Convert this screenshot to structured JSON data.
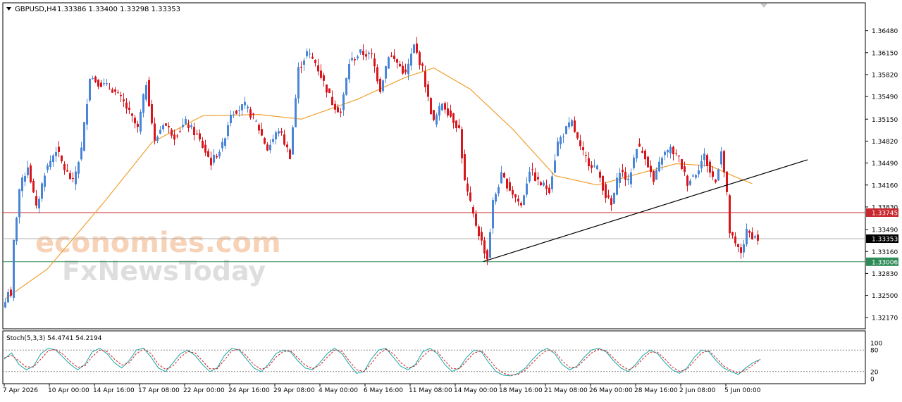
{
  "header": {
    "symbol": "GBPUSD,H4",
    "ohlc": "1.33386 1.33400 1.33298 1.33353"
  },
  "watermark": {
    "line1": "economies.com",
    "line2": "FxNewsToday"
  },
  "colors": {
    "bull": "#4a86d8",
    "bear": "#d8161d",
    "ma": "#f0a030",
    "trendline": "#000000",
    "resistance_line": "#c8282f",
    "support_line": "#2e8b57",
    "current_line": "#b0b0b0",
    "stoch_main": "#1aa6a6",
    "stoch_signal": "#d22222",
    "grid_level": "#888888"
  },
  "chart_data": [
    {
      "type": "line",
      "title": "GBPUSD,H4",
      "price_axis": {
        "ticks": [
          1.3648,
          1.3615,
          1.3582,
          1.3549,
          1.3515,
          1.3482,
          1.3449,
          1.3416,
          1.3383,
          1.3349,
          1.3316,
          1.3283,
          1.325,
          1.3217
        ],
        "tick_labels": [
          "1.36480",
          "1.36150",
          "1.35820",
          "1.35490",
          "1.35150",
          "1.34820",
          "1.34490",
          "1.34160",
          "1.33830",
          "1.33490",
          "1.33160",
          "1.32830",
          "1.32500",
          "1.32170"
        ],
        "ylim": [
          1.3203,
          1.3673
        ]
      },
      "time_axis": {
        "labels": [
          "7 Apr 2026",
          "10 Apr 00:00",
          "14 Apr 16:00",
          "17 Apr 08:00",
          "22 Apr 00:00",
          "24 Apr 16:00",
          "29 Apr 08:00",
          "4 May 00:00",
          "6 May 16:00",
          "11 May 08:00",
          "14 May 00:00",
          "18 May 16:00",
          "21 May 08:00",
          "26 May 00:00",
          "28 May 16:00",
          "2 Jun 08:00",
          "5 Jun 00:00"
        ],
        "label_bar_index": [
          0,
          16,
          32,
          48,
          64,
          80,
          96,
          112,
          128,
          144,
          160,
          176,
          192,
          208,
          224,
          240,
          256
        ]
      },
      "price_levels": [
        {
          "label": "1.33745",
          "value": 1.33745,
          "kind": "resistance"
        },
        {
          "label": "1.33353",
          "value": 1.33353,
          "kind": "current"
        },
        {
          "label": "1.33006",
          "value": 1.33006,
          "kind": "support"
        }
      ],
      "trendline": {
        "from": {
          "bar": 170,
          "price": 1.3301
        },
        "to": {
          "bar": 285,
          "price": 1.3454
        }
      },
      "ma_anchors": [
        [
          0,
          1.3245
        ],
        [
          15,
          1.329
        ],
        [
          35,
          1.339
        ],
        [
          52,
          1.348
        ],
        [
          70,
          1.352
        ],
        [
          90,
          1.3522
        ],
        [
          105,
          1.3515
        ],
        [
          125,
          1.3545
        ],
        [
          142,
          1.3578
        ],
        [
          152,
          1.3592
        ],
        [
          165,
          1.356
        ],
        [
          180,
          1.35
        ],
        [
          195,
          1.343
        ],
        [
          210,
          1.3416
        ],
        [
          222,
          1.343
        ],
        [
          238,
          1.3448
        ],
        [
          250,
          1.3445
        ],
        [
          258,
          1.343
        ],
        [
          265,
          1.3418
        ]
      ],
      "price_anchors": [
        [
          0,
          1.324
        ],
        [
          1,
          1.3258
        ],
        [
          2,
          1.3245
        ],
        [
          3,
          1.333
        ],
        [
          5,
          1.341
        ],
        [
          8,
          1.3445
        ],
        [
          11,
          1.338
        ],
        [
          14,
          1.3435
        ],
        [
          18,
          1.347
        ],
        [
          21,
          1.344
        ],
        [
          24,
          1.342
        ],
        [
          27,
          1.347
        ],
        [
          30,
          1.358
        ],
        [
          33,
          1.357
        ],
        [
          38,
          1.356
        ],
        [
          42,
          1.354
        ],
        [
          47,
          1.35
        ],
        [
          50,
          1.357
        ],
        [
          53,
          1.348
        ],
        [
          56,
          1.351
        ],
        [
          60,
          1.349
        ],
        [
          64,
          1.351
        ],
        [
          68,
          1.349
        ],
        [
          73,
          1.345
        ],
        [
          77,
          1.3475
        ],
        [
          80,
          1.3525
        ],
        [
          85,
          1.3535
        ],
        [
          89,
          1.351
        ],
        [
          93,
          1.347
        ],
        [
          97,
          1.35
        ],
        [
          101,
          1.346
        ],
        [
          104,
          1.359
        ],
        [
          107,
          1.3615
        ],
        [
          110,
          1.36
        ],
        [
          113,
          1.357
        ],
        [
          116,
          1.354
        ],
        [
          119,
          1.3525
        ],
        [
          122,
          1.36
        ],
        [
          126,
          1.3615
        ],
        [
          130,
          1.361
        ],
        [
          133,
          1.356
        ],
        [
          136,
          1.3612
        ],
        [
          139,
          1.36
        ],
        [
          142,
          1.3582
        ],
        [
          145,
          1.3625
        ],
        [
          148,
          1.359
        ],
        [
          150,
          1.3545
        ],
        [
          152,
          1.351
        ],
        [
          155,
          1.354
        ],
        [
          158,
          1.352
        ],
        [
          161,
          1.35
        ],
        [
          163,
          1.342
        ],
        [
          166,
          1.337
        ],
        [
          169,
          1.333
        ],
        [
          171,
          1.3305
        ],
        [
          173,
          1.339
        ],
        [
          176,
          1.343
        ],
        [
          179,
          1.341
        ],
        [
          183,
          1.3385
        ],
        [
          186,
          1.344
        ],
        [
          189,
          1.342
        ],
        [
          193,
          1.341
        ],
        [
          196,
          1.348
        ],
        [
          199,
          1.35
        ],
        [
          201,
          1.351
        ],
        [
          204,
          1.347
        ],
        [
          207,
          1.345
        ],
        [
          210,
          1.344
        ],
        [
          213,
          1.34
        ],
        [
          215,
          1.3385
        ],
        [
          218,
          1.344
        ],
        [
          221,
          1.342
        ],
        [
          224,
          1.3475
        ],
        [
          227,
          1.346
        ],
        [
          230,
          1.342
        ],
        [
          233,
          1.346
        ],
        [
          236,
          1.347
        ],
        [
          239,
          1.3455
        ],
        [
          242,
          1.342
        ],
        [
          245,
          1.3435
        ],
        [
          248,
          1.346
        ],
        [
          250,
          1.3435
        ],
        [
          252,
          1.342
        ],
        [
          254,
          1.347
        ],
        [
          256,
          1.34
        ],
        [
          257,
          1.3345
        ],
        [
          259,
          1.3325
        ],
        [
          261,
          1.3315
        ],
        [
          263,
          1.3345
        ],
        [
          265,
          1.334
        ],
        [
          267,
          1.3335
        ]
      ]
    },
    {
      "type": "line",
      "title": "Stoch(5,3,3) 54.4741 54.2194",
      "ylim": [
        0,
        100
      ],
      "levels": [
        20,
        80
      ],
      "level_labels": [
        "100",
        "80",
        "20",
        "0"
      ],
      "series": [
        {
          "name": "54.4741",
          "values": [
            55,
            72,
            40,
            25,
            35,
            70,
            85,
            80,
            60,
            40,
            25,
            40,
            75,
            85,
            70,
            45,
            30,
            50,
            80,
            85,
            60,
            30,
            20,
            45,
            70,
            80,
            65,
            40,
            20,
            30,
            65,
            85,
            80,
            55,
            30,
            20,
            40,
            70,
            80,
            75,
            50,
            30,
            25,
            45,
            70,
            85,
            70,
            40,
            15,
            20,
            55,
            80,
            85,
            60,
            35,
            25,
            40,
            75,
            85,
            70,
            40,
            20,
            30,
            60,
            80,
            75,
            45,
            20,
            10,
            8,
            15,
            30,
            55,
            75,
            85,
            70,
            40,
            25,
            35,
            60,
            80,
            85,
            75,
            50,
            30,
            20,
            40,
            65,
            80,
            70,
            45,
            25,
            15,
            30,
            60,
            80,
            75,
            50,
            30,
            20,
            12,
            30,
            45,
            54
          ]
        },
        {
          "name": "54.2194",
          "values": [
            58,
            65,
            50,
            33,
            33,
            55,
            78,
            82,
            68,
            48,
            32,
            36,
            62,
            80,
            76,
            55,
            38,
            44,
            70,
            83,
            70,
            40,
            26,
            36,
            60,
            76,
            72,
            50,
            28,
            28,
            52,
            78,
            82,
            64,
            40,
            26,
            34,
            60,
            76,
            78,
            58,
            38,
            28,
            38,
            60,
            80,
            76,
            50,
            25,
            20,
            42,
            70,
            82,
            70,
            45,
            30,
            36,
            62,
            80,
            76,
            50,
            28,
            28,
            50,
            72,
            78,
            56,
            30,
            15,
            10,
            12,
            24,
            45,
            66,
            80,
            76,
            50,
            32,
            32,
            52,
            72,
            82,
            78,
            58,
            38,
            25,
            34,
            56,
            74,
            74,
            55,
            33,
            20,
            26,
            50,
            72,
            78,
            58,
            36,
            24,
            16,
            24,
            38,
            54
          ]
        }
      ]
    }
  ]
}
